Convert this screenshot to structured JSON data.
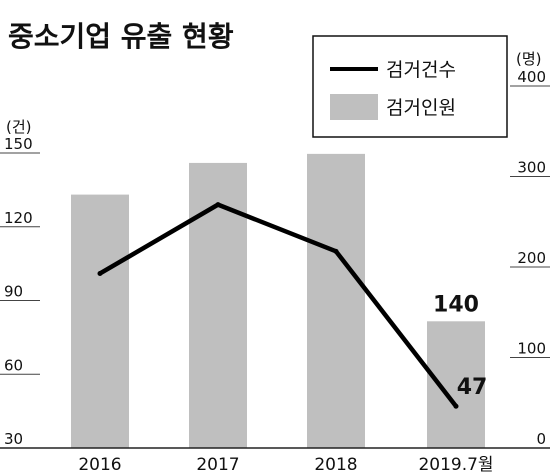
{
  "chart_data": {
    "type": "bar",
    "title": "중소기업 유출 현황",
    "categories": [
      "2016",
      "2017",
      "2018",
      "2019.7월"
    ],
    "series": [
      {
        "name": "검거인원",
        "type": "bar",
        "axis": "right",
        "values": [
          280,
          315,
          325,
          140
        ],
        "color": "#bfbfbf"
      },
      {
        "name": "검거건수",
        "type": "line",
        "axis": "left",
        "values": [
          101,
          129,
          110,
          47
        ],
        "color": "#000000"
      }
    ],
    "y_left": {
      "unit_label": "(건)",
      "range": [
        30,
        150
      ],
      "ticks": [
        "30",
        "60",
        "90",
        "120",
        "150"
      ]
    },
    "y_right": {
      "unit_label": "(명)",
      "range": [
        0,
        400
      ],
      "ticks": [
        "0",
        "100",
        "200",
        "300",
        "400"
      ]
    },
    "data_labels": {
      "bar_last": "140",
      "line_last": "47"
    },
    "legend": {
      "placement": "top-right"
    },
    "grid": false
  }
}
